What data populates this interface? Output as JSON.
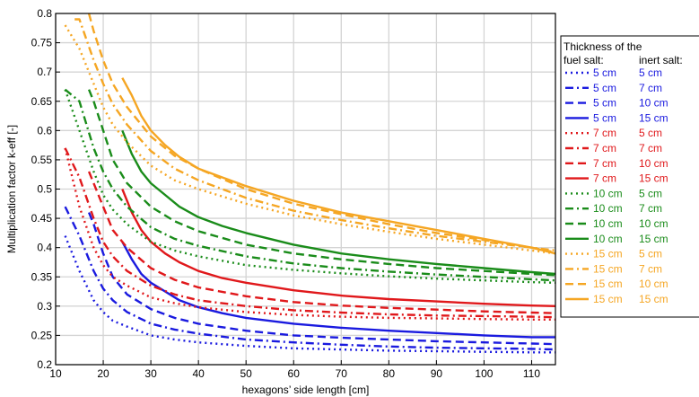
{
  "chart_data": {
    "type": "line",
    "title": "",
    "xlabel": "hexagons’ side length [cm]",
    "ylabel": "Multiplication factor k-eff [-]",
    "xlim": [
      10,
      115
    ],
    "ylim": [
      0.2,
      0.8
    ],
    "xticks": [
      10,
      20,
      30,
      40,
      50,
      60,
      70,
      80,
      90,
      100,
      110
    ],
    "yticks": [
      0.2,
      0.25,
      0.3,
      0.35,
      0.4,
      0.45,
      0.5,
      0.55,
      0.6,
      0.65,
      0.7,
      0.75,
      0.8
    ],
    "xtick_labels": [
      "10",
      "20",
      "30",
      "40",
      "50",
      "60",
      "70",
      "80",
      "90",
      "100",
      "110"
    ],
    "ytick_labels": [
      "0.2",
      "0.25",
      "0.3",
      "0.35",
      "0.4",
      "0.45",
      "0.5",
      "0.55",
      "0.6",
      "0.65",
      "0.7",
      "0.75",
      "0.8"
    ],
    "grid": true,
    "legend": {
      "placement": "right-outside",
      "header_line1": "Thickness of the",
      "header_col1": "fuel salt:",
      "header_col2": "inert salt:"
    },
    "colors": {
      "5 cm": "#1a1adf",
      "7 cm": "#e0181b",
      "10 cm": "#1a8c1a",
      "15 cm": "#f5a623"
    },
    "series": [
      {
        "fuel": "5 cm",
        "inert": "5 cm",
        "style": "dotted",
        "x": [
          12,
          15,
          18,
          20,
          22,
          25,
          30,
          35,
          40,
          50,
          60,
          70,
          80,
          90,
          100,
          110,
          115
        ],
        "y": [
          0.42,
          0.36,
          0.31,
          0.29,
          0.275,
          0.265,
          0.25,
          0.243,
          0.238,
          0.232,
          0.228,
          0.226,
          0.224,
          0.223,
          0.222,
          0.221,
          0.221
        ]
      },
      {
        "fuel": "5 cm",
        "inert": "7 cm",
        "style": "dashdot",
        "x": [
          12,
          15,
          18,
          20,
          22,
          25,
          30,
          35,
          40,
          50,
          60,
          70,
          80,
          90,
          100,
          110,
          115
        ],
        "y": [
          0.47,
          0.42,
          0.36,
          0.33,
          0.31,
          0.29,
          0.27,
          0.26,
          0.253,
          0.243,
          0.238,
          0.234,
          0.231,
          0.229,
          0.228,
          0.227,
          0.226
        ]
      },
      {
        "fuel": "5 cm",
        "inert": "10 cm",
        "style": "dashed",
        "x": [
          17,
          18,
          20,
          22,
          25,
          30,
          35,
          40,
          50,
          60,
          70,
          80,
          90,
          100,
          110,
          115
        ],
        "y": [
          0.46,
          0.44,
          0.39,
          0.35,
          0.32,
          0.295,
          0.28,
          0.27,
          0.258,
          0.25,
          0.246,
          0.243,
          0.24,
          0.238,
          0.236,
          0.235
        ]
      },
      {
        "fuel": "5 cm",
        "inert": "15 cm",
        "style": "solid",
        "x": [
          24,
          26,
          28,
          30,
          33,
          36,
          40,
          45,
          50,
          60,
          70,
          80,
          90,
          100,
          110,
          115
        ],
        "y": [
          0.41,
          0.38,
          0.355,
          0.34,
          0.325,
          0.31,
          0.298,
          0.288,
          0.28,
          0.27,
          0.263,
          0.258,
          0.254,
          0.25,
          0.247,
          0.247
        ]
      },
      {
        "fuel": "7 cm",
        "inert": "5 cm",
        "style": "dotted",
        "x": [
          12,
          15,
          18,
          20,
          22,
          25,
          30,
          35,
          40,
          50,
          60,
          70,
          80,
          90,
          100,
          110,
          115
        ],
        "y": [
          0.57,
          0.47,
          0.4,
          0.37,
          0.35,
          0.335,
          0.315,
          0.305,
          0.298,
          0.29,
          0.285,
          0.282,
          0.28,
          0.279,
          0.278,
          0.277,
          0.277
        ]
      },
      {
        "fuel": "7 cm",
        "inert": "7 cm",
        "style": "dashdot",
        "x": [
          12,
          15,
          18,
          20,
          22,
          25,
          30,
          35,
          40,
          50,
          60,
          70,
          80,
          90,
          100,
          110,
          115
        ],
        "y": [
          0.57,
          0.52,
          0.45,
          0.41,
          0.385,
          0.36,
          0.335,
          0.32,
          0.31,
          0.3,
          0.293,
          0.289,
          0.286,
          0.284,
          0.283,
          0.282,
          0.281
        ]
      },
      {
        "fuel": "7 cm",
        "inert": "10 cm",
        "style": "dashed",
        "x": [
          17,
          18,
          20,
          22,
          25,
          30,
          35,
          40,
          50,
          60,
          70,
          80,
          90,
          100,
          110,
          115
        ],
        "y": [
          0.53,
          0.51,
          0.47,
          0.43,
          0.4,
          0.365,
          0.345,
          0.332,
          0.317,
          0.307,
          0.301,
          0.297,
          0.294,
          0.291,
          0.289,
          0.288
        ]
      },
      {
        "fuel": "7 cm",
        "inert": "15 cm",
        "style": "solid",
        "x": [
          24,
          26,
          28,
          30,
          33,
          36,
          40,
          45,
          50,
          60,
          70,
          80,
          90,
          100,
          110,
          115
        ],
        "y": [
          0.5,
          0.46,
          0.43,
          0.41,
          0.39,
          0.375,
          0.36,
          0.348,
          0.34,
          0.327,
          0.318,
          0.312,
          0.308,
          0.304,
          0.301,
          0.3
        ]
      },
      {
        "fuel": "10 cm",
        "inert": "5 cm",
        "style": "dotted",
        "x": [
          12,
          15,
          18,
          20,
          22,
          25,
          30,
          35,
          40,
          50,
          60,
          70,
          80,
          90,
          100,
          110,
          115
        ],
        "y": [
          0.67,
          0.6,
          0.53,
          0.49,
          0.465,
          0.44,
          0.41,
          0.395,
          0.385,
          0.37,
          0.362,
          0.356,
          0.351,
          0.347,
          0.344,
          0.341,
          0.34
        ]
      },
      {
        "fuel": "10 cm",
        "inert": "7 cm",
        "style": "dashdot",
        "x": [
          12,
          15,
          18,
          20,
          22,
          25,
          30,
          35,
          40,
          50,
          60,
          70,
          80,
          90,
          100,
          110,
          115
        ],
        "y": [
          0.67,
          0.65,
          0.57,
          0.53,
          0.5,
          0.47,
          0.435,
          0.415,
          0.403,
          0.385,
          0.373,
          0.365,
          0.359,
          0.354,
          0.35,
          0.346,
          0.344
        ]
      },
      {
        "fuel": "10 cm",
        "inert": "10 cm",
        "style": "dashed",
        "x": [
          17,
          18,
          20,
          22,
          25,
          30,
          35,
          40,
          50,
          60,
          70,
          80,
          90,
          100,
          110,
          115
        ],
        "y": [
          0.67,
          0.65,
          0.6,
          0.55,
          0.51,
          0.47,
          0.445,
          0.428,
          0.405,
          0.39,
          0.38,
          0.372,
          0.365,
          0.36,
          0.355,
          0.353
        ]
      },
      {
        "fuel": "10 cm",
        "inert": "15 cm",
        "style": "solid",
        "x": [
          24,
          26,
          28,
          30,
          33,
          36,
          40,
          45,
          50,
          60,
          70,
          80,
          90,
          100,
          110,
          115
        ],
        "y": [
          0.6,
          0.56,
          0.53,
          0.51,
          0.49,
          0.47,
          0.452,
          0.437,
          0.425,
          0.405,
          0.39,
          0.38,
          0.372,
          0.365,
          0.358,
          0.355
        ]
      },
      {
        "fuel": "15 cm",
        "inert": "5 cm",
        "style": "dotted",
        "x": [
          12,
          15,
          18,
          20,
          22,
          25,
          30,
          35,
          40,
          50,
          60,
          70,
          80,
          90,
          100,
          110,
          115
        ],
        "y": [
          0.78,
          0.74,
          0.68,
          0.64,
          0.61,
          0.58,
          0.54,
          0.515,
          0.5,
          0.475,
          0.455,
          0.44,
          0.427,
          0.415,
          0.405,
          0.395,
          0.39
        ]
      },
      {
        "fuel": "15 cm",
        "inert": "7 cm",
        "style": "dashdot",
        "x": [
          14,
          15,
          18,
          20,
          22,
          25,
          30,
          35,
          40,
          50,
          60,
          70,
          80,
          90,
          100,
          110,
          115
        ],
        "y": [
          0.79,
          0.79,
          0.72,
          0.68,
          0.645,
          0.61,
          0.565,
          0.535,
          0.515,
          0.485,
          0.463,
          0.447,
          0.433,
          0.42,
          0.41,
          0.4,
          0.395
        ]
      },
      {
        "fuel": "15 cm",
        "inert": "10 cm",
        "style": "dashed",
        "x": [
          17,
          18,
          20,
          22,
          25,
          30,
          35,
          40,
          50,
          60,
          70,
          80,
          90,
          100,
          110,
          115
        ],
        "y": [
          0.8,
          0.77,
          0.72,
          0.68,
          0.64,
          0.59,
          0.557,
          0.535,
          0.5,
          0.475,
          0.457,
          0.44,
          0.425,
          0.413,
          0.4,
          0.392
        ]
      },
      {
        "fuel": "15 cm",
        "inert": "15 cm",
        "style": "solid",
        "x": [
          24,
          26,
          28,
          30,
          33,
          36,
          40,
          45,
          50,
          60,
          70,
          80,
          90,
          100,
          110,
          115
        ],
        "y": [
          0.69,
          0.66,
          0.625,
          0.6,
          0.575,
          0.555,
          0.535,
          0.52,
          0.505,
          0.48,
          0.46,
          0.445,
          0.43,
          0.415,
          0.4,
          0.39
        ]
      }
    ]
  }
}
